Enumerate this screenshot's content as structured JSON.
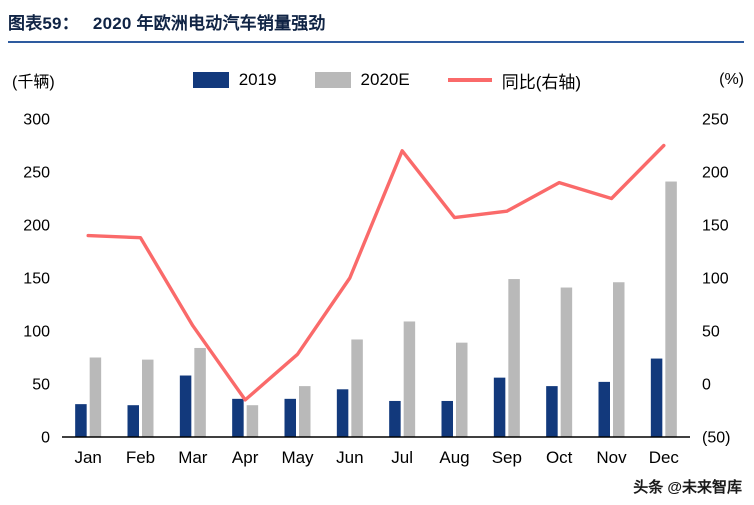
{
  "header": {
    "chart_label": "图表59：",
    "title": "2020 年欧洲电动汽车销量强劲"
  },
  "axis_units": {
    "left": "(千辆)",
    "right": "(%)"
  },
  "legend": [
    {
      "label": "2019",
      "color": "#12397c",
      "type": "bar"
    },
    {
      "label": "2020E",
      "color": "#b9b9b9",
      "type": "bar"
    },
    {
      "label": "同比(右轴)",
      "color": "#fa6a6a",
      "type": "line"
    }
  ],
  "watermark": "头条 @未来智库",
  "colors": {
    "accent_rule": "#2e5b9f",
    "bar_2019": "#12397c",
    "bar_2020e": "#b9b9b9",
    "yoy_line": "#fa6a6a"
  },
  "chart_data": {
    "type": "bar",
    "title": "2020 年欧洲电动汽车销量强劲",
    "categories": [
      "Jan",
      "Feb",
      "Mar",
      "Apr",
      "May",
      "Jun",
      "Jul",
      "Aug",
      "Sep",
      "Oct",
      "Nov",
      "Dec"
    ],
    "series": [
      {
        "name": "2019",
        "type": "bar",
        "axis": "left",
        "color": "#12397c",
        "values": [
          31,
          30,
          58,
          36,
          36,
          45,
          34,
          34,
          56,
          48,
          52,
          74
        ]
      },
      {
        "name": "2020E",
        "type": "bar",
        "axis": "left",
        "color": "#b9b9b9",
        "values": [
          75,
          73,
          84,
          30,
          48,
          92,
          109,
          89,
          149,
          141,
          146,
          241
        ]
      },
      {
        "name": "同比(右轴)",
        "type": "line",
        "axis": "right",
        "color": "#fa6a6a",
        "values": [
          140,
          138,
          55,
          -15,
          28,
          100,
          220,
          157,
          163,
          190,
          175,
          225
        ]
      }
    ],
    "left_axis": {
      "label": "(千辆)",
      "min": 0,
      "max": 300,
      "step": 50,
      "ticks": [
        "0",
        "50",
        "100",
        "150",
        "200",
        "250",
        "300"
      ]
    },
    "right_axis": {
      "label": "(%)",
      "min": -50,
      "max": 250,
      "step": 50,
      "ticks": [
        "(50)",
        "0",
        "50",
        "100",
        "150",
        "200",
        "250"
      ]
    },
    "grid": false,
    "legend_position": "top"
  }
}
